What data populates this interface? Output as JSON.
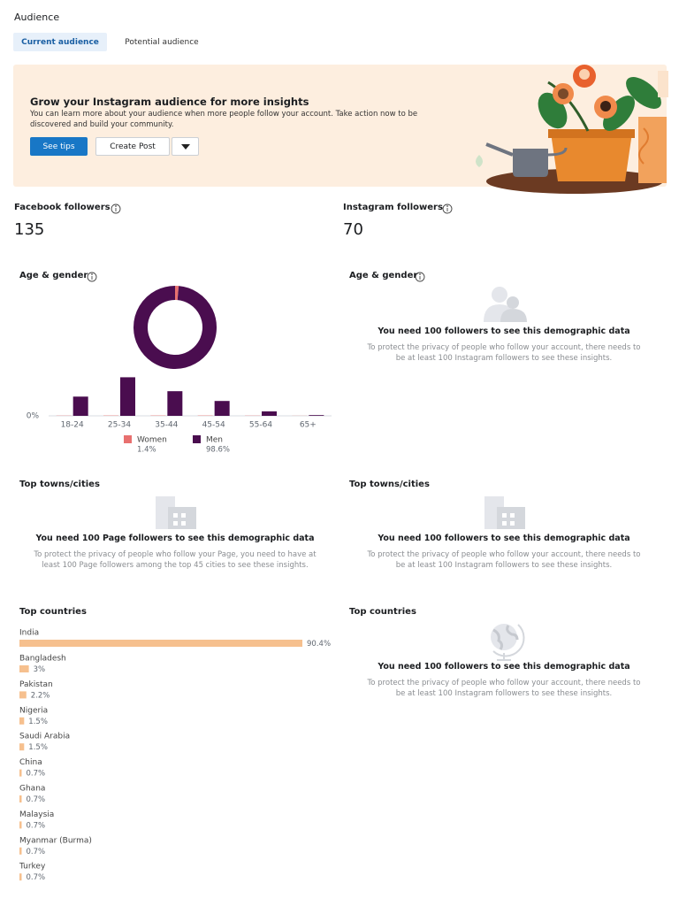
{
  "header": {
    "title": "Audience",
    "tabs": [
      "Current audience",
      "Potential audience"
    ]
  },
  "banner": {
    "title": "Grow your Instagram audience for more insights",
    "text": "You can learn more about your audience when more people follow your account. Take action now to be discovered and build your community.",
    "buttons": [
      "See tips",
      "Create Post"
    ]
  },
  "facebook": {
    "label": "Facebook followers",
    "count": 135
  },
  "instagram": {
    "label": "Instagram followers",
    "count": 70
  },
  "sections": {
    "facebook_towns": {
      "title": "Top towns/cities",
      "heading": "You need 100 Page followers to see this demographic data",
      "text": "To protect the privacy of people who follow your Page, you need to have at least 100 Page followers among the top 45 cities to see these insights."
    },
    "instagram_age_gender": {
      "title": "Age & gender",
      "heading": "You need 100 followers to see this demographic data",
      "text": "To protect the privacy of people who follow your account, there needs to be at least 100 Instagram followers to see these insights."
    },
    "instagram_towns": {
      "title": "Top towns/cities",
      "heading": "You need 100 followers to see this demographic data",
      "text": "To protect the privacy of people who follow your account, there needs to be at least 100 Instagram followers to see these insights."
    },
    "instagram_countries": {
      "title": "Top countries",
      "heading": "You need 100 followers to see this demographic data",
      "text": "To protect the privacy of people who follow your account, there needs to be at least 100 Instagram followers to see these insights."
    }
  },
  "chart_data": [
    {
      "type": "bar",
      "title": "Age & gender",
      "categories": [
        "18-24",
        "25-34",
        "35-44",
        "45-54",
        "55-64",
        "65+"
      ],
      "series": [
        {
          "name": "Women",
          "color": "#e8706f",
          "values": [
            0.2,
            0.3,
            0.3,
            0.3,
            0.2,
            0.1
          ]
        },
        {
          "name": "Men",
          "color": "#4a0d4f",
          "values": [
            18.5,
            37.1,
            23.7,
            14.3,
            4.3,
            0.7
          ]
        }
      ],
      "totals": [
        1.4,
        98.6
      ],
      "total_labels": [
        "1.4%",
        "98.6%"
      ],
      "ylim": [
        0,
        40
      ],
      "yticks": [
        {
          "value": 0,
          "label": "0%"
        }
      ],
      "grid": true
    },
    {
      "type": "hbar",
      "title": "Top countries",
      "categories": [
        "India",
        "Bangladesh",
        "Pakistan",
        "Nigeria",
        "Saudi Arabia",
        "China",
        "Ghana",
        "Malaysia",
        "Myanmar (Burma)",
        "Turkey"
      ],
      "values": [
        90.4,
        3,
        2.2,
        1.5,
        1.5,
        0.7,
        0.7,
        0.7,
        0.7,
        0.7
      ],
      "value_labels": [
        "90.4%",
        "3%",
        "2.2%",
        "1.5%",
        "1.5%",
        "0.7%",
        "0.7%",
        "0.7%",
        "0.7%",
        "0.7%"
      ],
      "color": "#f6c08e",
      "xlim": [
        0,
        100
      ]
    }
  ]
}
